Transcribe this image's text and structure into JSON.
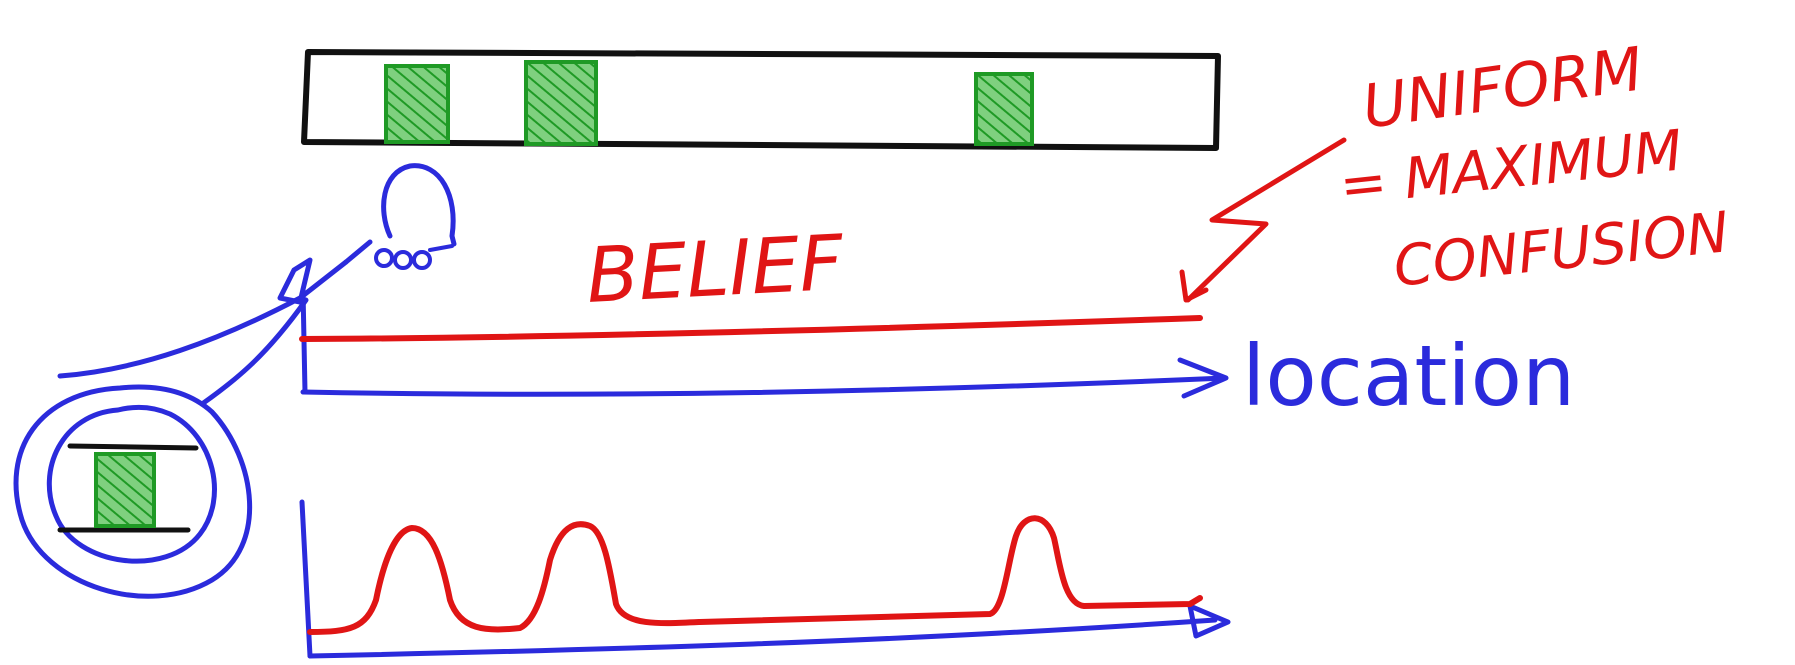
{
  "labels": {
    "belief": "BELIEF",
    "location": "location",
    "uniform": "UNIFORM",
    "equals_line": "= MAXIMUM",
    "confusion": "CONFUSION"
  },
  "colors": {
    "red": "#e01515",
    "blue": "#2b2bdc",
    "black": "#111111",
    "green": "#1f9a25"
  }
}
